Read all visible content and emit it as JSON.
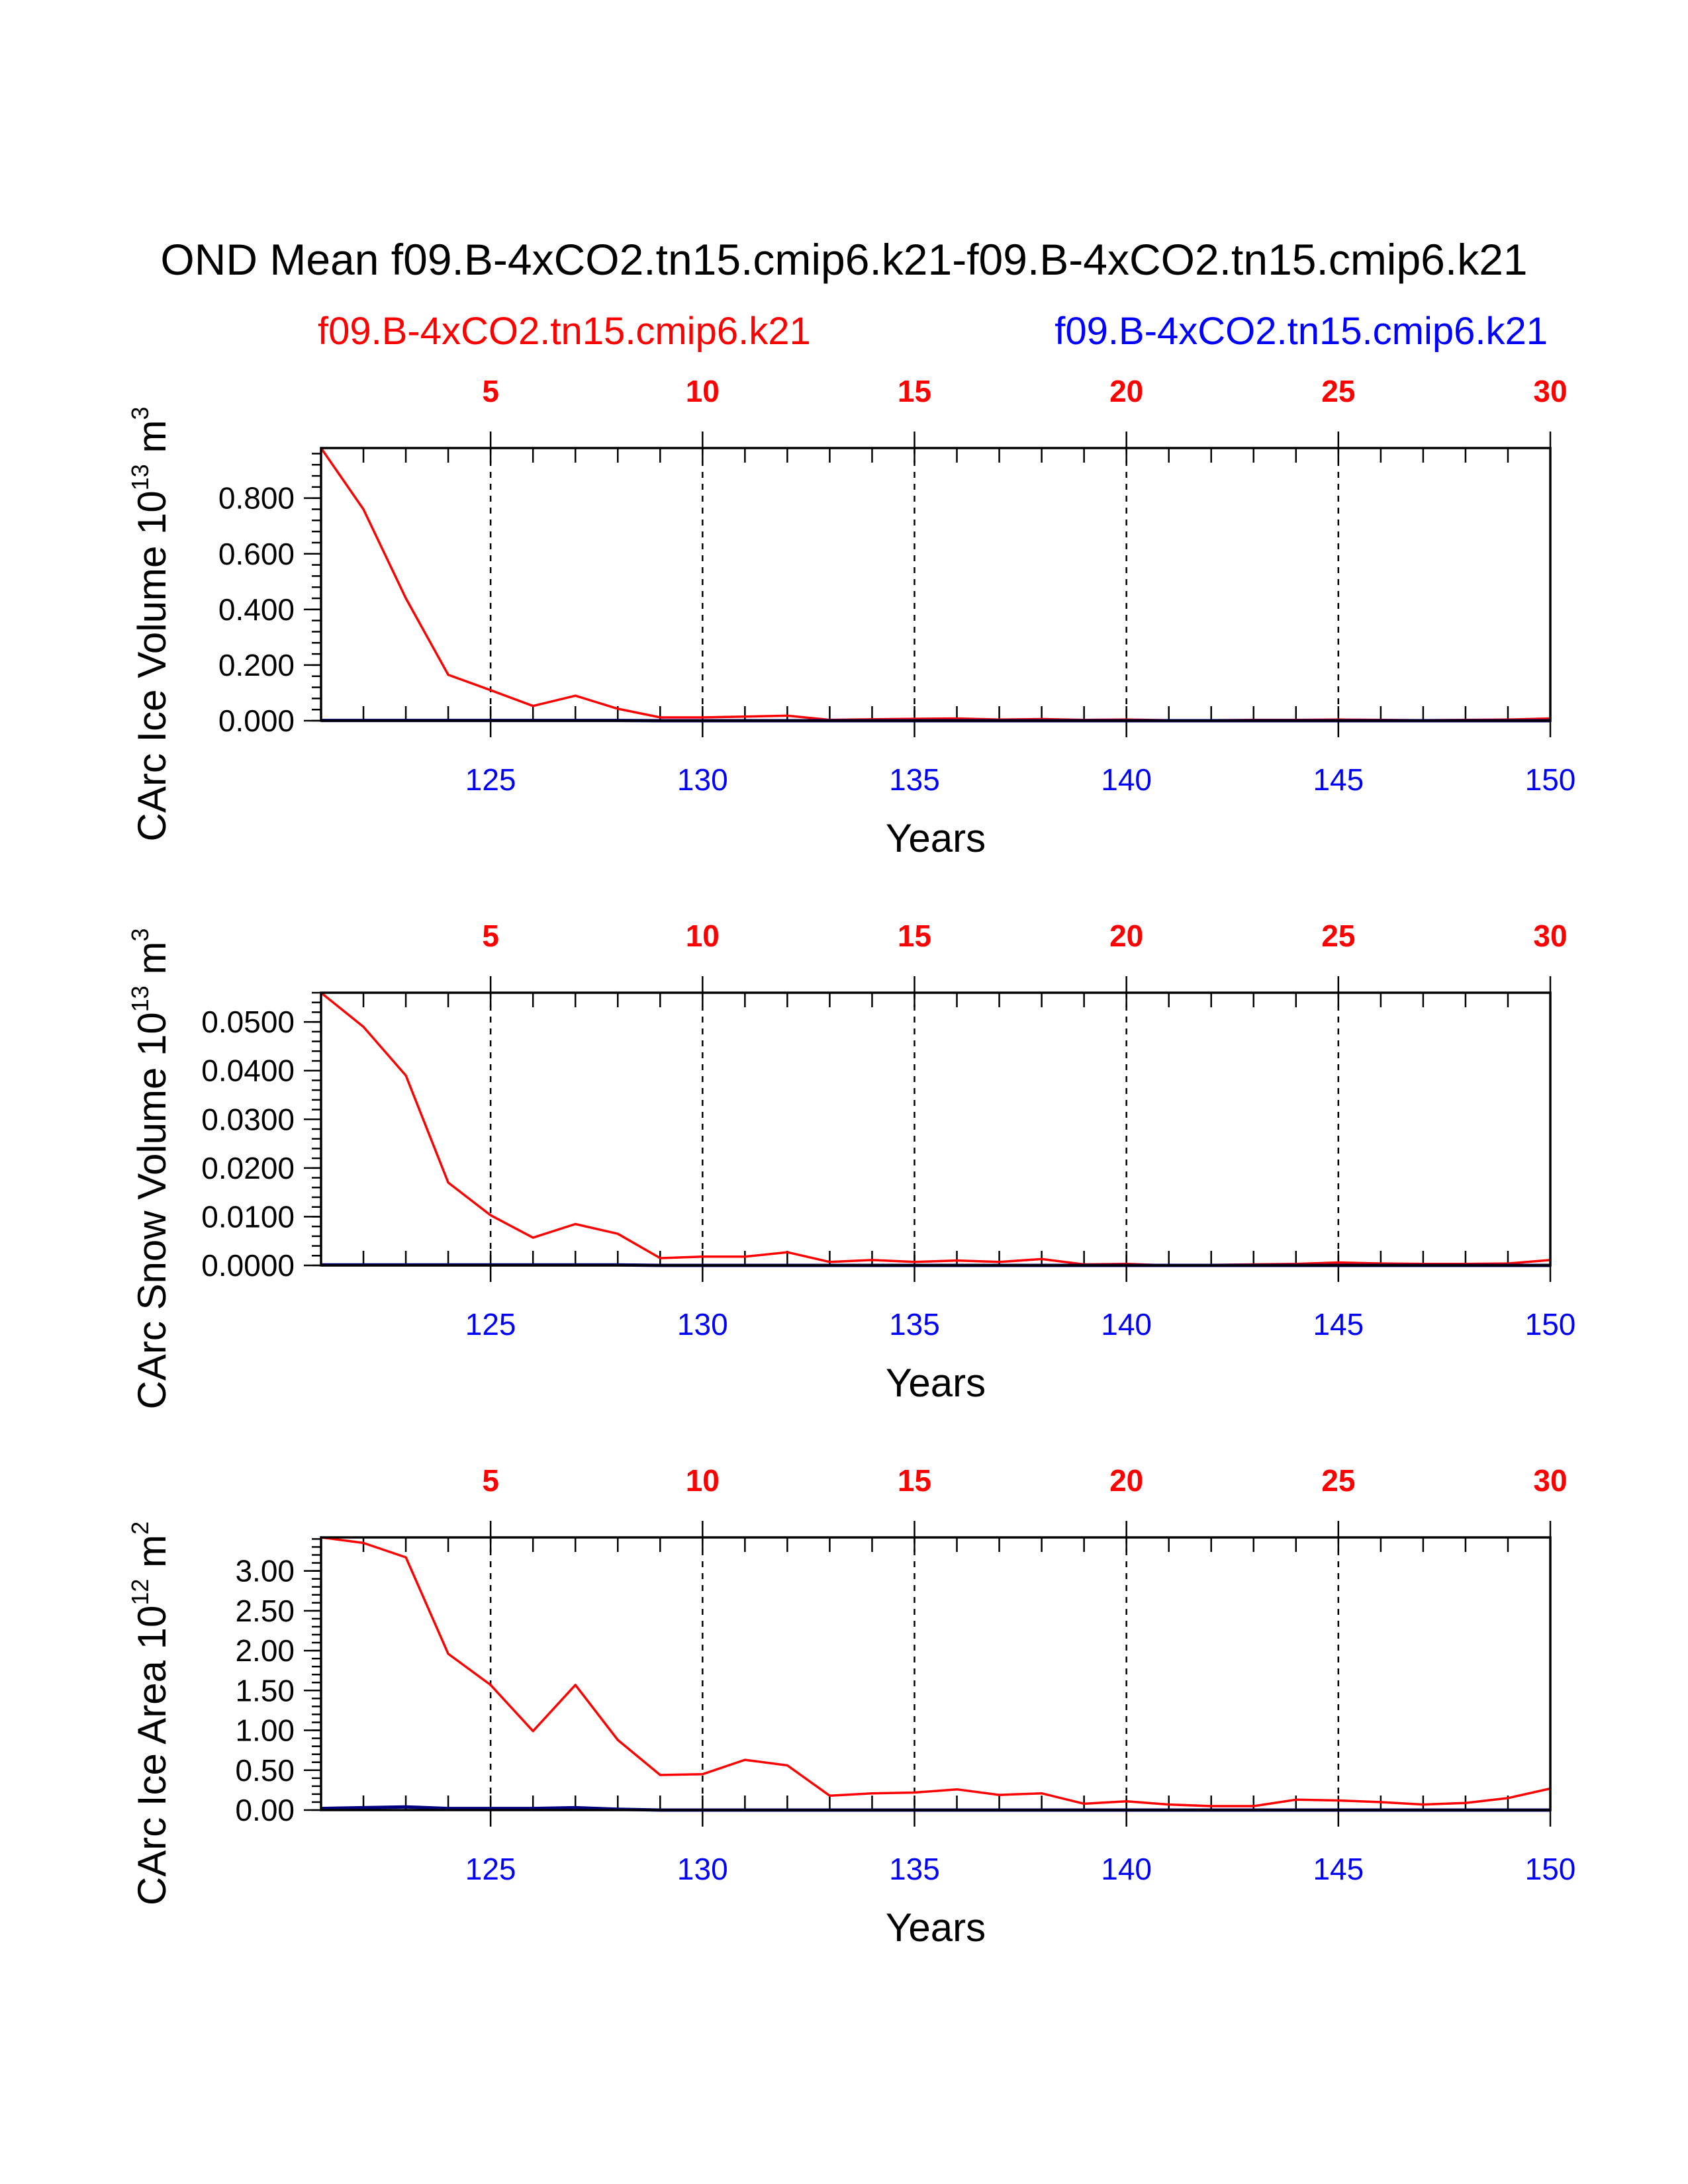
{
  "colors": {
    "red": "#ff0000",
    "blue": "#0000ff",
    "navy": "#000080",
    "black": "#000000"
  },
  "header": {
    "title": "OND Mean f09.B-4xCO2.tn15.cmip6.k21-f09.B-4xCO2.tn15.cmip6.k21",
    "legend": [
      {
        "label": "f09.B-4xCO2.tn15.cmip6.k21",
        "color": "#ff0000"
      },
      {
        "label": "f09.B-4xCO2.tn15.cmip6.k21",
        "color": "#0000ff"
      }
    ]
  },
  "chart_data": [
    {
      "type": "line",
      "ylabel": {
        "main": "CArc Ice Volume 10",
        "sup1": "13",
        "unit": " m",
        "sup2": "3"
      },
      "xlabel": "Years",
      "xlim": [
        121,
        150
      ],
      "ylim": [
        0,
        0.98
      ],
      "yticks": [
        0,
        0.2,
        0.4,
        0.6,
        0.8
      ],
      "yticklabels": [
        "0.000",
        "0.200",
        "0.400",
        "0.600",
        "0.800"
      ],
      "yminor_step": 0.04,
      "bottom_ticks": [
        125,
        130,
        135,
        140,
        145,
        150
      ],
      "bottom_ticklabels": [
        "125",
        "130",
        "135",
        "140",
        "145",
        "150"
      ],
      "top_ticks": [
        125,
        130,
        135,
        140,
        145,
        150
      ],
      "top_ticklabels": [
        "5",
        "10",
        "15",
        "20",
        "25",
        "30"
      ],
      "vlines": [
        125,
        130,
        135,
        140,
        145
      ],
      "x": [
        121,
        122,
        123,
        124,
        125,
        126,
        127,
        128,
        129,
        130,
        131,
        132,
        133,
        134,
        135,
        136,
        137,
        138,
        139,
        140,
        141,
        142,
        143,
        144,
        145,
        146,
        147,
        148,
        149,
        150
      ],
      "series": [
        {
          "name": "f09.B-4xCO2.tn15.cmip6.k21",
          "color": "#ff0000",
          "values": [
            0.98,
            0.76,
            0.44,
            0.165,
            0.11,
            0.053,
            0.09,
            0.043,
            0.012,
            0.012,
            0.015,
            0.018,
            0.003,
            0.005,
            0.007,
            0.008,
            0.004,
            0.006,
            0.003,
            0.004,
            0.002,
            0.002,
            0.003,
            0.003,
            0.004,
            0.003,
            0.002,
            0.003,
            0.004,
            0.008
          ]
        },
        {
          "name": "f09.B-4xCO2.tn15.cmip6.k21",
          "color": "#000080",
          "values": [
            0.001,
            0.001,
            0.001,
            0.001,
            0.001,
            0.001,
            0.001,
            0.001,
            0.0,
            0.0,
            0.0,
            0.0,
            0.0,
            0.0,
            0.0,
            0.0,
            0.0,
            0.0,
            0.0,
            0.0,
            0.0,
            0.0,
            0.0,
            0.0,
            0.0,
            0.0,
            0.0,
            0.0,
            0.0,
            0.0
          ]
        }
      ]
    },
    {
      "type": "line",
      "ylabel": {
        "main": "CArc Snow Volume 10",
        "sup1": "13",
        "unit": " m",
        "sup2": "3"
      },
      "xlabel": "Years",
      "xlim": [
        121,
        150
      ],
      "ylim": [
        0,
        0.056
      ],
      "yticks": [
        0,
        0.01,
        0.02,
        0.03,
        0.04,
        0.05
      ],
      "yticklabels": [
        "0.0000",
        "0.0100",
        "0.0200",
        "0.0300",
        "0.0400",
        "0.0500"
      ],
      "yminor_step": 0.002,
      "bottom_ticks": [
        125,
        130,
        135,
        140,
        145,
        150
      ],
      "bottom_ticklabels": [
        "125",
        "130",
        "135",
        "140",
        "145",
        "150"
      ],
      "top_ticks": [
        125,
        130,
        135,
        140,
        145,
        150
      ],
      "top_ticklabels": [
        "5",
        "10",
        "15",
        "20",
        "25",
        "30"
      ],
      "vlines": [
        125,
        130,
        135,
        140,
        145
      ],
      "x": [
        121,
        122,
        123,
        124,
        125,
        126,
        127,
        128,
        129,
        130,
        131,
        132,
        133,
        134,
        135,
        136,
        137,
        138,
        139,
        140,
        141,
        142,
        143,
        144,
        145,
        146,
        147,
        148,
        149,
        150
      ],
      "series": [
        {
          "name": "f09.B-4xCO2.tn15.cmip6.k21",
          "color": "#ff0000",
          "values": [
            0.056,
            0.049,
            0.039,
            0.017,
            0.0103,
            0.0057,
            0.0085,
            0.0065,
            0.0015,
            0.0018,
            0.0018,
            0.0027,
            0.0007,
            0.0011,
            0.0007,
            0.001,
            0.0007,
            0.0013,
            0.0002,
            0.0003,
            0.0,
            0.0001,
            0.0002,
            0.0003,
            0.0006,
            0.0004,
            0.0003,
            0.0003,
            0.0004,
            0.0011
          ]
        },
        {
          "name": "f09.B-4xCO2.tn15.cmip6.k21",
          "color": "#000080",
          "values": [
            0.0001,
            0.0001,
            0.0001,
            0.0001,
            0.0001,
            0.0001,
            0.0001,
            0.0001,
            0.0,
            0.0,
            0.0,
            0.0,
            0.0,
            0.0,
            0.0,
            0.0,
            0.0,
            0.0,
            0.0,
            0.0,
            0.0,
            0.0,
            0.0,
            0.0,
            0.0,
            0.0,
            0.0,
            0.0,
            0.0,
            0.0
          ]
        }
      ]
    },
    {
      "type": "line",
      "ylabel": {
        "main": "CArc Ice Area 10",
        "sup1": "12",
        "unit": " m",
        "sup2": "2"
      },
      "xlabel": "Years",
      "xlim": [
        121,
        150
      ],
      "ylim": [
        0,
        3.42
      ],
      "yticks": [
        0,
        0.5,
        1.0,
        1.5,
        2.0,
        2.5,
        3.0
      ],
      "yticklabels": [
        "0.00",
        "0.50",
        "1.00",
        "1.50",
        "2.00",
        "2.50",
        "3.00"
      ],
      "yminor_step": 0.1,
      "bottom_ticks": [
        125,
        130,
        135,
        140,
        145,
        150
      ],
      "bottom_ticklabels": [
        "125",
        "130",
        "135",
        "140",
        "145",
        "150"
      ],
      "top_ticks": [
        125,
        130,
        135,
        140,
        145,
        150
      ],
      "top_ticklabels": [
        "5",
        "10",
        "15",
        "20",
        "25",
        "30"
      ],
      "vlines": [
        125,
        130,
        135,
        140,
        145
      ],
      "x": [
        121,
        122,
        123,
        124,
        125,
        126,
        127,
        128,
        129,
        130,
        131,
        132,
        133,
        134,
        135,
        136,
        137,
        138,
        139,
        140,
        141,
        142,
        143,
        144,
        145,
        146,
        147,
        148,
        149,
        150
      ],
      "series": [
        {
          "name": "f09.B-4xCO2.tn15.cmip6.k21",
          "color": "#ff0000",
          "values": [
            3.42,
            3.35,
            3.17,
            1.96,
            1.57,
            0.99,
            1.57,
            0.88,
            0.44,
            0.45,
            0.63,
            0.56,
            0.18,
            0.21,
            0.22,
            0.26,
            0.19,
            0.21,
            0.08,
            0.11,
            0.07,
            0.05,
            0.05,
            0.13,
            0.12,
            0.1,
            0.07,
            0.09,
            0.15,
            0.27
          ]
        },
        {
          "name": "f09.B-4xCO2.tn15.cmip6.k21",
          "color": "#000080",
          "values": [
            0.02,
            0.03,
            0.04,
            0.02,
            0.02,
            0.02,
            0.03,
            0.01,
            0.0,
            0.0,
            0.0,
            0.0,
            0.0,
            0.0,
            0.0,
            0.0,
            0.0,
            0.0,
            0.0,
            0.0,
            0.0,
            0.0,
            0.0,
            0.0,
            0.0,
            0.0,
            0.0,
            0.0,
            0.0,
            0.0
          ]
        }
      ]
    }
  ]
}
